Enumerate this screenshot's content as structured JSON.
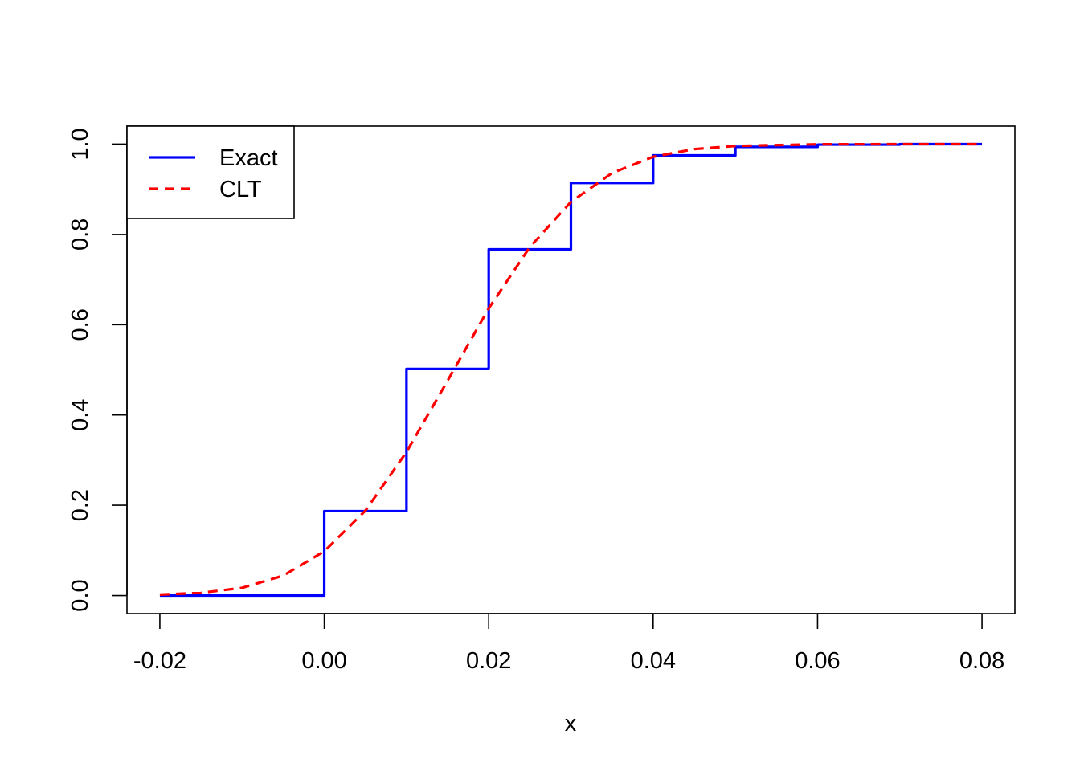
{
  "chart_data": {
    "type": "line",
    "xlabel": "x",
    "ylabel": "",
    "title": "",
    "xlim": [
      -0.024,
      0.084
    ],
    "ylim": [
      -0.04,
      1.04
    ],
    "x_ticks": [
      "-0.02",
      "0.00",
      "0.02",
      "0.04",
      "0.06",
      "0.08"
    ],
    "x_tick_values": [
      -0.02,
      0.0,
      0.02,
      0.04,
      0.06,
      0.08
    ],
    "y_ticks": [
      "0.0",
      "0.2",
      "0.4",
      "0.6",
      "0.8",
      "1.0"
    ],
    "y_tick_values": [
      0.0,
      0.2,
      0.4,
      0.6,
      0.8,
      1.0
    ],
    "grid": false,
    "legend_position": "top-left",
    "series": [
      {
        "name": "Exact",
        "style": "step",
        "color": "#0000ff",
        "dash": "solid",
        "x": [
          -0.02,
          0.0,
          0.01,
          0.02,
          0.03,
          0.04,
          0.05,
          0.06,
          0.07,
          0.08
        ],
        "y": [
          0.0,
          0.187,
          0.502,
          0.767,
          0.914,
          0.975,
          0.994,
          0.999,
          1.0,
          1.0
        ]
      },
      {
        "name": "CLT",
        "style": "curve",
        "color": "#ff0000",
        "dash": "dashed",
        "x": [
          -0.02,
          -0.015,
          -0.01,
          -0.005,
          0.0,
          0.005,
          0.01,
          0.015,
          0.02,
          0.025,
          0.03,
          0.035,
          0.04,
          0.045,
          0.05,
          0.06,
          0.07,
          0.08
        ],
        "y": [
          0.002,
          0.006,
          0.017,
          0.044,
          0.098,
          0.188,
          0.318,
          0.476,
          0.636,
          0.772,
          0.872,
          0.936,
          0.972,
          0.989,
          0.996,
          0.9997,
          1.0,
          1.0
        ]
      }
    ]
  }
}
